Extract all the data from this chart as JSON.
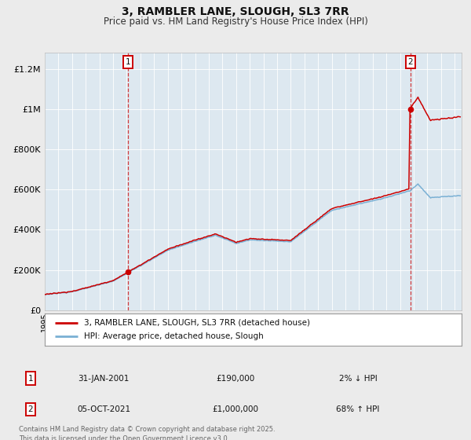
{
  "title": "3, RAMBLER LANE, SLOUGH, SL3 7RR",
  "subtitle": "Price paid vs. HM Land Registry's House Price Index (HPI)",
  "title_fontsize": 10,
  "subtitle_fontsize": 8.5,
  "ylabel_ticks": [
    "£0",
    "£200K",
    "£400K",
    "£600K",
    "£800K",
    "£1M",
    "£1.2M"
  ],
  "ytick_values": [
    0,
    200000,
    400000,
    600000,
    800000,
    1000000,
    1200000
  ],
  "ylim": [
    0,
    1280000
  ],
  "xlim_start": 1995.0,
  "xlim_end": 2025.5,
  "hpi_color": "#7ab0d4",
  "price_color": "#cc0000",
  "sale1_x": 2001.08,
  "sale1_y": 190000,
  "sale2_x": 2021.76,
  "sale2_y": 1000000,
  "marker1_date": "31-JAN-2001",
  "marker1_price": "£190,000",
  "marker1_hpi": "2% ↓ HPI",
  "marker2_date": "05-OCT-2021",
  "marker2_price": "£1,000,000",
  "marker2_hpi": "68% ↑ HPI",
  "legend_label1": "3, RAMBLER LANE, SLOUGH, SL3 7RR (detached house)",
  "legend_label2": "HPI: Average price, detached house, Slough",
  "footnote": "Contains HM Land Registry data © Crown copyright and database right 2025.\nThis data is licensed under the Open Government Licence v3.0.",
  "bg_color": "#ebebeb",
  "plot_bg_color": "#dde8f0",
  "grid_color": "#ffffff"
}
